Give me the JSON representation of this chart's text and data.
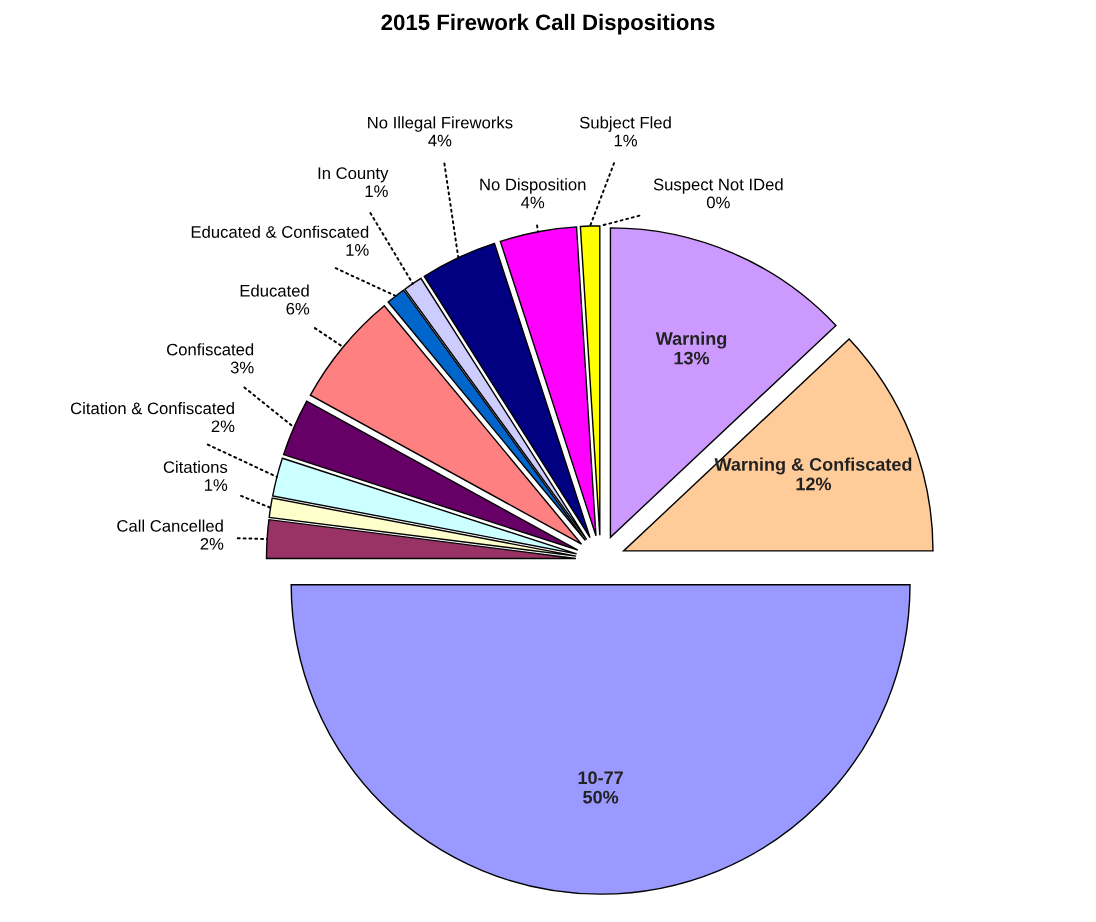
{
  "chart_data": {
    "type": "pie",
    "title": "2015 Firework Call Dispositions",
    "categories": [
      "Warning",
      "Warning & Confiscated",
      "10-77",
      "Call Cancelled",
      "Citations",
      "Citation & Confiscated",
      "Confiscated",
      "Educated",
      "Educated & Confiscated",
      "In County",
      "No Illegal Fireworks",
      "No Disposition",
      "Subject Fled",
      "Suspect Not IDed"
    ],
    "values": [
      13,
      12,
      50,
      2,
      1,
      2,
      3,
      6,
      1,
      1,
      4,
      4,
      1,
      0
    ],
    "value_labels": [
      "13%",
      "12%",
      "50%",
      "2%",
      "1%",
      "2%",
      "3%",
      "6%",
      "1%",
      "1%",
      "4%",
      "4%",
      "1%",
      "0%"
    ],
    "colors": [
      "#cc99ff",
      "#ffcc99",
      "#9999ff",
      "#993366",
      "#ffffcc",
      "#ccffff",
      "#660066",
      "#ff8080",
      "#0066cc",
      "#ccccff",
      "#000080",
      "#ff00ff",
      "#ffff00",
      "#00ffff"
    ]
  }
}
